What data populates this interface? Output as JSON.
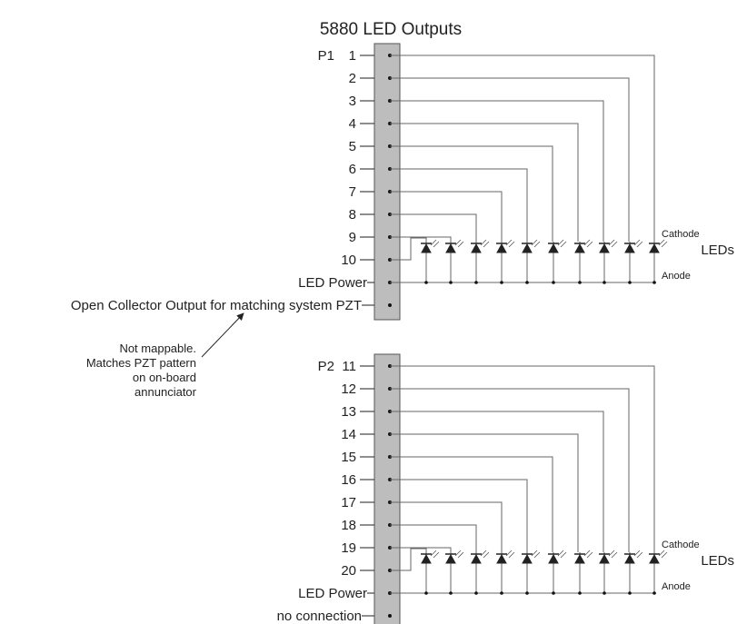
{
  "title": "5880 LED Outputs",
  "colors": {
    "strip_fill": "#bdbdbd",
    "wire": "#666666",
    "text": "#222222"
  },
  "connectors": [
    {
      "name": "P1",
      "pins": [
        "1",
        "2",
        "3",
        "4",
        "5",
        "6",
        "7",
        "8",
        "9",
        "10"
      ],
      "power_label": "LED Power",
      "extra_label": "Open Collector Output for matching system PZT",
      "cathode_label": "Cathode",
      "anode_label": "Anode",
      "leds_label": "LEDs"
    },
    {
      "name": "P2",
      "pins": [
        "11",
        "12",
        "13",
        "14",
        "15",
        "16",
        "17",
        "18",
        "19",
        "20"
      ],
      "power_label": "LED Power",
      "extra_label": "no connection",
      "cathode_label": "Cathode",
      "anode_label": "Anode",
      "leds_label": "LEDs"
    }
  ],
  "note": [
    "Not mappable.",
    "Matches PZT pattern",
    "on on-board",
    "annunciator"
  ]
}
